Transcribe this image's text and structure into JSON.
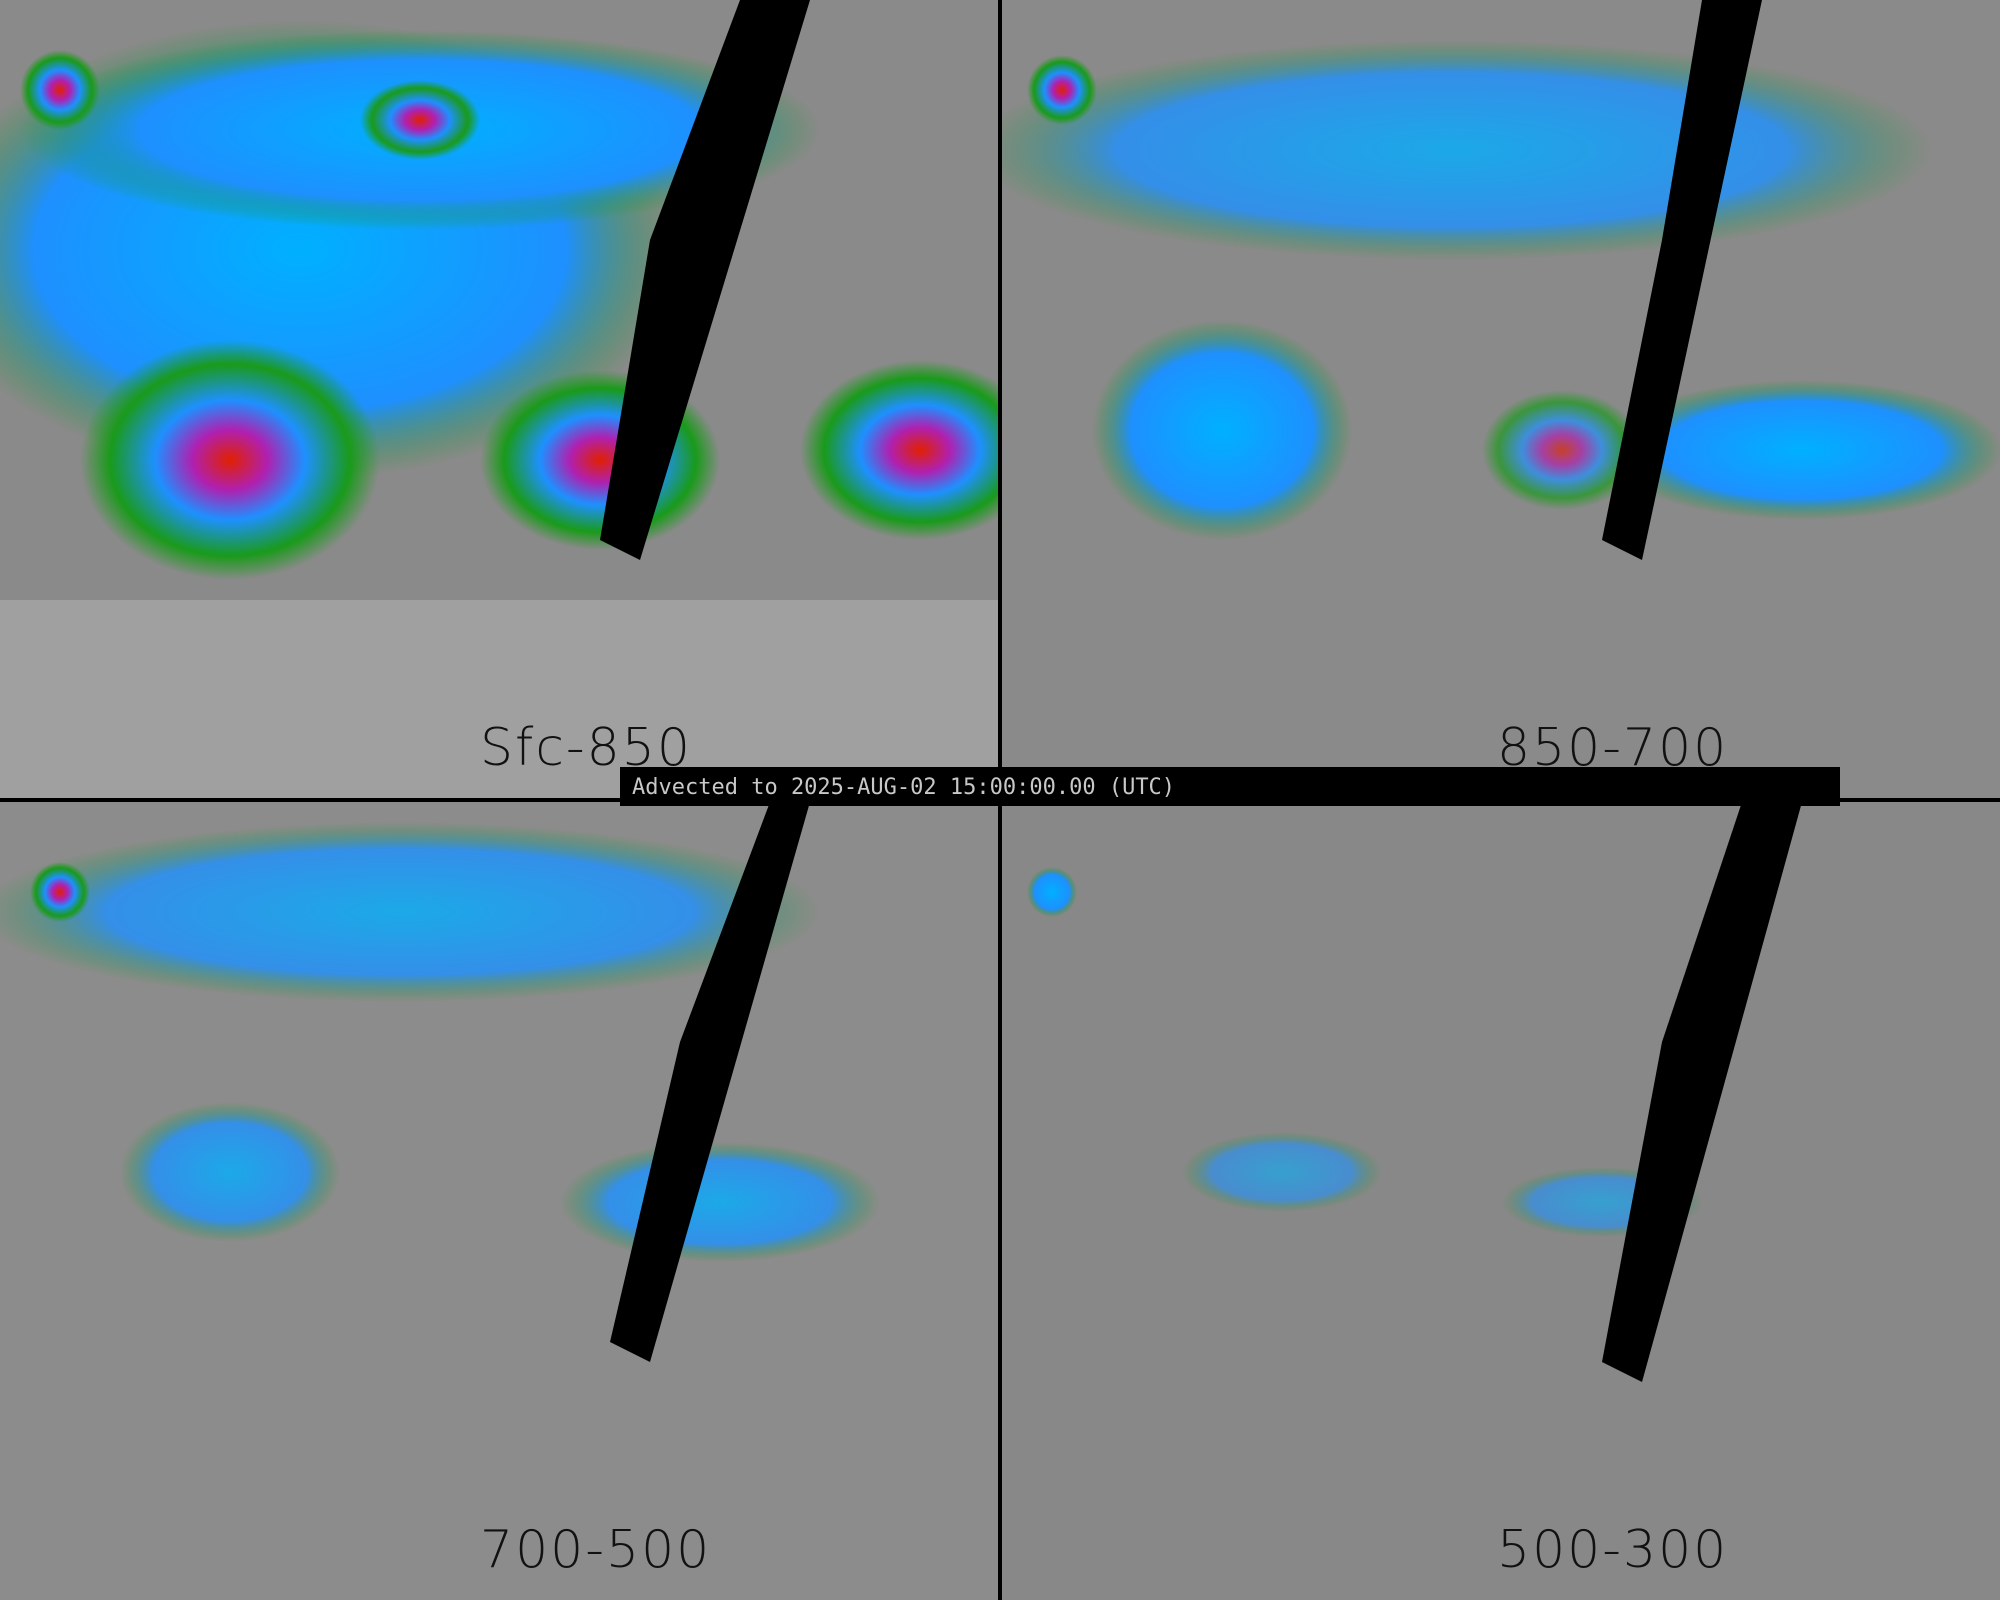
{
  "banner": {
    "text": "Advected to 2025-AUG-02 15:00:00.00 (UTC)"
  },
  "panels": [
    {
      "label": "Sfc-850",
      "intensity": "high"
    },
    {
      "label": "850-700",
      "intensity": "medium"
    },
    {
      "label": "700-500",
      "intensity": "low"
    },
    {
      "label": "500-300",
      "intensity": "very-low"
    }
  ],
  "colors": {
    "dry": "#808080",
    "green": "#1a9a1a",
    "blue": "#1e90ff",
    "cyan": "#00d0ff",
    "magenta": "#b020b0",
    "red": "#e02000",
    "yellow": "#ffd000",
    "nodata": "#000000"
  }
}
